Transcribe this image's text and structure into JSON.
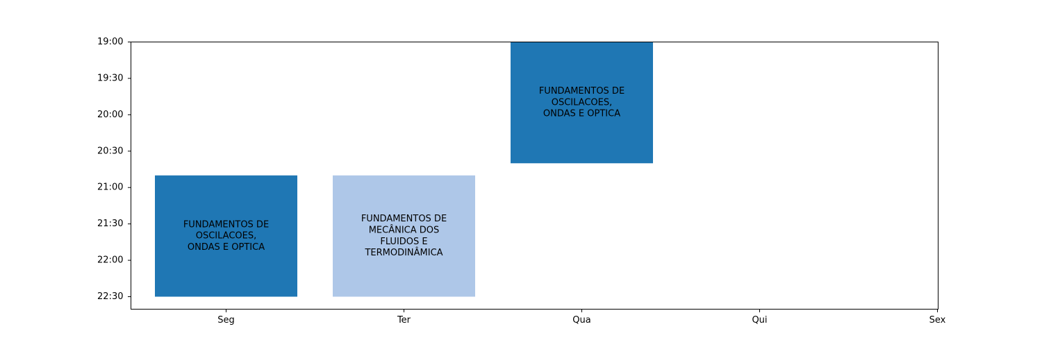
{
  "chart_data": {
    "type": "bar",
    "title": "",
    "xlabel": "",
    "ylabel": "",
    "categories": [
      "Seg",
      "Ter",
      "Qua",
      "Qui",
      "Sex"
    ],
    "y_ticks": [
      "19:00",
      "19:30",
      "20:00",
      "20:30",
      "21:00",
      "21:30",
      "22:00",
      "22:30"
    ],
    "ylim_hours": [
      19.0,
      22.67
    ],
    "y_inverted": true,
    "grid": false,
    "events": [
      {
        "day": "Seg",
        "start": "20:50",
        "end": "22:30",
        "label": "FUNDAMENTOS DE\nOSCILACOES,\nONDAS E OPTICA",
        "color": "#1f77b4"
      },
      {
        "day": "Ter",
        "start": "20:50",
        "end": "22:30",
        "label": "FUNDAMENTOS DE\nMECÂNICA DOS\nFLUIDOS E\nTERMODINÂMICA",
        "color": "#aec7e8"
      },
      {
        "day": "Qua",
        "start": "19:00",
        "end": "20:40",
        "label": "FUNDAMENTOS DE\nOSCILACOES,\nONDAS E OPTICA",
        "color": "#1f77b4"
      }
    ]
  }
}
